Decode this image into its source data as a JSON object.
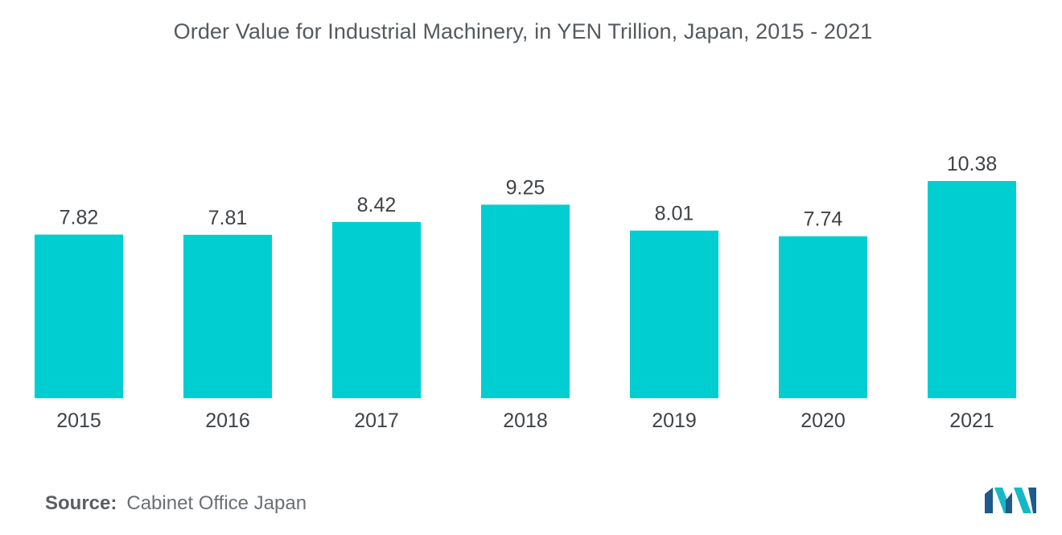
{
  "chart_data": {
    "type": "bar",
    "title": "Order Value for Industrial Machinery, in YEN Trillion, Japan, 2015 - 2021",
    "categories": [
      "2015",
      "2016",
      "2017",
      "2018",
      "2019",
      "2020",
      "2021"
    ],
    "values": [
      7.82,
      7.81,
      8.42,
      9.25,
      8.01,
      7.74,
      10.38
    ],
    "value_labels": [
      "7.82",
      "7.81",
      "8.42",
      "9.25",
      "8.01",
      "7.74",
      "10.38"
    ],
    "xlabel": "",
    "ylabel": "",
    "ylim": [
      0,
      10.38
    ],
    "grid": false,
    "legend": "none",
    "bar_color": "#00ced1"
  },
  "source": {
    "label": "Source:",
    "text": "Cabinet Office Japan"
  },
  "colors": {
    "bar": "#00ced1",
    "text": "#555a5e",
    "logo_dark": "#1e5a8a",
    "logo_light": "#17b8c4"
  }
}
